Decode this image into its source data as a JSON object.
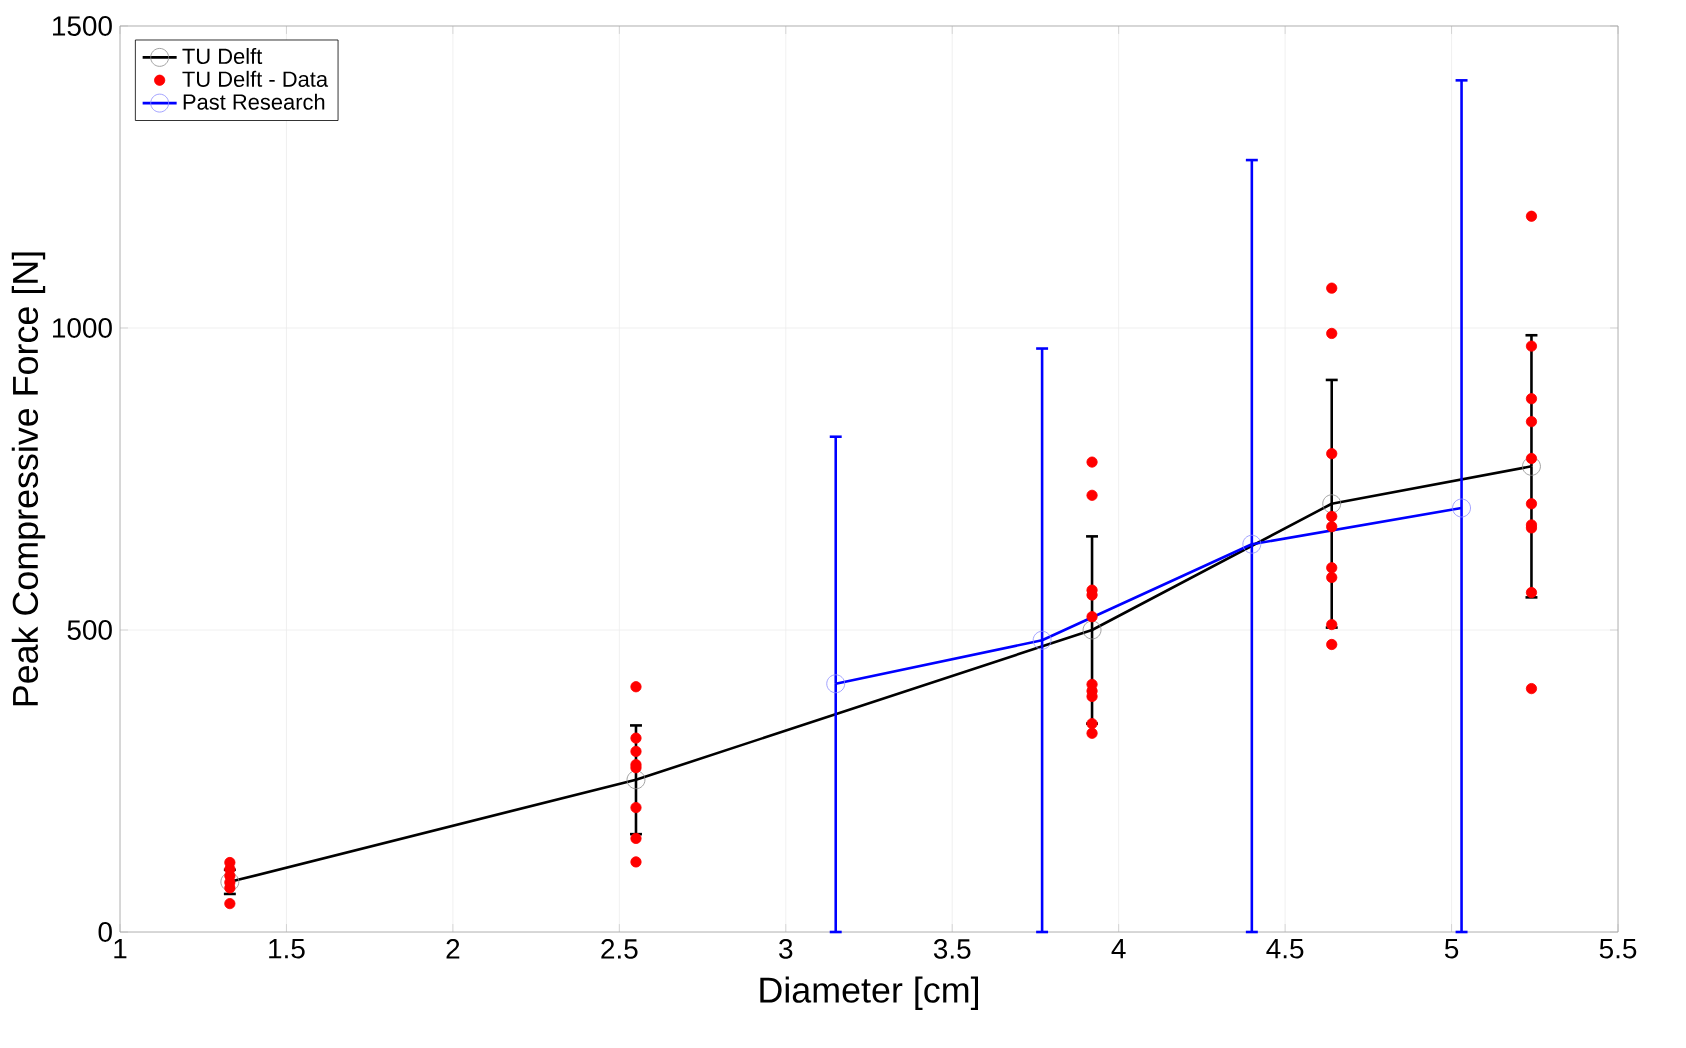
{
  "chart_data": {
    "type": "line",
    "xlabel": "Diameter [cm]",
    "ylabel": "Peak Compressive Force [N]",
    "xlim": [
      1,
      5.5
    ],
    "xticks": [
      1,
      1.5,
      2,
      2.5,
      3,
      3.5,
      4,
      4.5,
      5,
      5.5
    ],
    "ylim": [
      0,
      1500
    ],
    "yticks": [
      0,
      500,
      1000,
      1500
    ],
    "grid": true,
    "legend": "top left",
    "marker": "circle",
    "line_style": "solid",
    "series": [
      {
        "name": "TU Delft",
        "color": "#000000",
        "x": [
          1.33,
          2.55,
          3.92,
          4.64,
          5.24
        ],
        "values": [
          83,
          252,
          500,
          709,
          771
        ],
        "errors": [
          20,
          90,
          155,
          205,
          217
        ]
      },
      {
        "name": "TU Delft - Data",
        "type": "scatter",
        "color": "#ff0000",
        "x": [
          1.33,
          1.33,
          1.33,
          1.33,
          1.33,
          1.33,
          2.55,
          2.55,
          2.55,
          2.55,
          2.55,
          2.55,
          2.55,
          2.55,
          3.92,
          3.92,
          3.92,
          3.92,
          3.92,
          3.92,
          3.92,
          3.92,
          3.92,
          3.92,
          4.64,
          4.64,
          4.64,
          4.64,
          4.64,
          4.64,
          4.64,
          4.64,
          4.64,
          5.24,
          5.24,
          5.24,
          5.24,
          5.24,
          5.24,
          5.24,
          5.24,
          5.24,
          5.24
        ],
        "values": [
          115,
          104,
          93,
          82,
          73,
          47,
          406,
          321,
          299,
          277,
          272,
          206,
          155,
          116,
          778,
          723,
          566,
          558,
          522,
          410,
          399,
          390,
          345,
          329,
          1066,
          991,
          792,
          688,
          671,
          603,
          587,
          509,
          476,
          1185,
          970,
          883,
          845,
          784,
          709,
          674,
          669,
          562,
          403
        ]
      },
      {
        "name": "Past Research",
        "color": "#0000ff",
        "x": [
          3.15,
          3.77,
          4.4,
          5.03
        ],
        "values": [
          411,
          483,
          642,
          702
        ],
        "errors": [
          [
            0,
            820
          ],
          [
            0,
            966
          ],
          [
            0,
            1278
          ],
          [
            0,
            1410
          ]
        ]
      }
    ]
  }
}
